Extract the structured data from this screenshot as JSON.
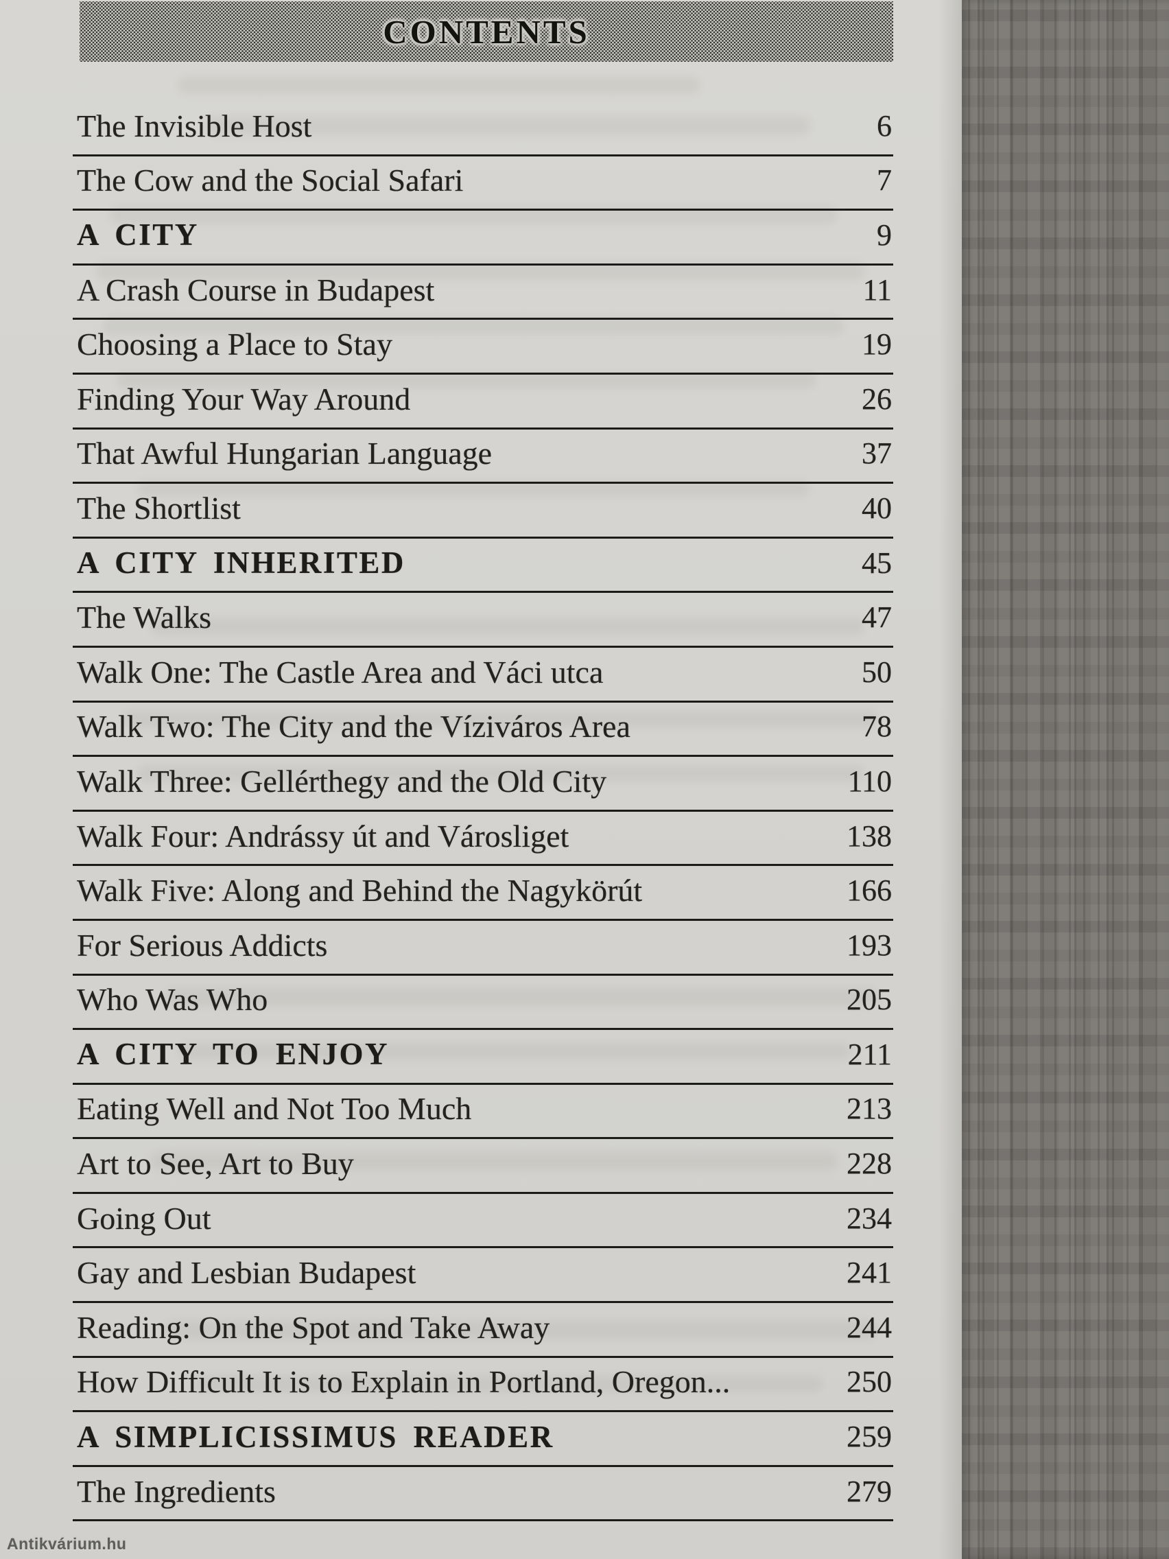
{
  "header": {
    "title": "CONTENTS"
  },
  "toc": {
    "entries": [
      {
        "label": "The Invisible Host",
        "page": "6",
        "type": "chapter"
      },
      {
        "label": "The Cow and the Social Safari",
        "page": "7",
        "type": "chapter"
      },
      {
        "label": "A CITY",
        "page": "9",
        "type": "section"
      },
      {
        "label": "A Crash Course in Budapest",
        "page": "11",
        "type": "chapter"
      },
      {
        "label": "Choosing a Place to Stay",
        "page": "19",
        "type": "chapter"
      },
      {
        "label": "Finding Your Way Around",
        "page": "26",
        "type": "chapter"
      },
      {
        "label": "That Awful Hungarian Language",
        "page": "37",
        "type": "chapter"
      },
      {
        "label": "The Shortlist",
        "page": "40",
        "type": "chapter"
      },
      {
        "label": "A CITY INHERITED",
        "page": "45",
        "type": "section"
      },
      {
        "label": "The Walks",
        "page": "47",
        "type": "chapter"
      },
      {
        "label": "Walk One: The Castle Area and Váci utca",
        "page": "50",
        "type": "chapter"
      },
      {
        "label": "Walk Two: The City and the Víziváros Area",
        "page": "78",
        "type": "chapter"
      },
      {
        "label": "Walk Three: Gellérthegy and the Old City",
        "page": "110",
        "type": "chapter"
      },
      {
        "label": "Walk Four: Andrássy út and Városliget",
        "page": "138",
        "type": "chapter"
      },
      {
        "label": "Walk Five: Along and Behind the Nagykörút",
        "page": "166",
        "type": "chapter"
      },
      {
        "label": "For Serious Addicts",
        "page": "193",
        "type": "chapter"
      },
      {
        "label": "Who Was Who",
        "page": "205",
        "type": "chapter"
      },
      {
        "label": "A CITY TO ENJOY",
        "page": "211",
        "type": "section"
      },
      {
        "label": "Eating Well and Not Too Much",
        "page": "213",
        "type": "chapter"
      },
      {
        "label": "Art to See, Art to Buy",
        "page": "228",
        "type": "chapter"
      },
      {
        "label": "Going Out",
        "page": "234",
        "type": "chapter"
      },
      {
        "label": "Gay and Lesbian Budapest",
        "page": "241",
        "type": "chapter"
      },
      {
        "label": "Reading: On the Spot and Take Away",
        "page": "244",
        "type": "chapter"
      },
      {
        "label": "How Difficult It is to Explain in Portland, Oregon...",
        "page": "250",
        "type": "chapter"
      },
      {
        "label": "A SIMPLICISSIMUS READER",
        "page": "259",
        "type": "section"
      },
      {
        "label": "The Ingredients",
        "page": "279",
        "type": "chapter"
      }
    ]
  },
  "watermark": {
    "text": "Antikvárium.hu"
  },
  "colors": {
    "paper": "#d4d3cf",
    "ink": "#232220",
    "rule_line": "#1b1b19",
    "edge_band": "#7a7772"
  }
}
